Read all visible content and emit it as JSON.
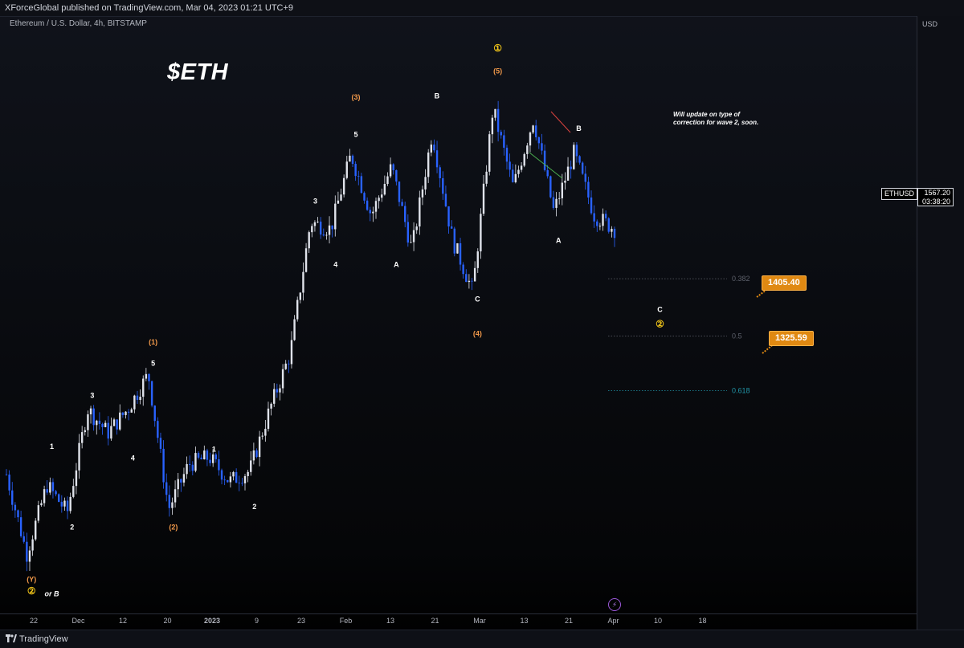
{
  "header": {
    "published": "XForceGlobal published on TradingView.com, Mar 04, 2023 01:21 UTC+9",
    "symbol_line": "Ethereum / U.S. Dollar, 4h, BITSTAMP"
  },
  "footer": {
    "brand": "TradingView"
  },
  "currency_label": "USD",
  "title": "$ETH",
  "note": "Will update on type of correction for wave 2, soon.",
  "ticker": "ETHUSD",
  "last_price": "1567.20",
  "countdown": "03:38:20",
  "colors": {
    "background": "#0b0d13",
    "candle_up": "#e0e3eb",
    "candle_down": "#2962ff",
    "wave_orange": "#f2994a",
    "fib_gray": "#5d606b",
    "fib_teal": "#2196a8",
    "callout": "#e08912",
    "trend_red": "#d9423e",
    "trend_green": "#4caf50"
  },
  "chart_data": {
    "type": "candlestick",
    "timeframe": "4h",
    "ylim": [
      1012,
      1840
    ],
    "y_ticks": [
      "1825.00",
      "1775.00",
      "1725.00",
      "1675.00",
      "1635.00",
      "1595.00",
      "1555.00",
      "1515.00",
      "1475.00",
      "1435.00",
      "1395.00",
      "1355.00",
      "1325.00",
      "1295.00",
      "1265.00",
      "1235.00",
      "1205.00",
      "1175.00",
      "1150.00",
      "1130.00",
      "1110.00",
      "1090.00",
      "1070.00",
      "1050.00",
      "1030.00",
      "1012.00"
    ],
    "x_ticks": [
      "22",
      "Dec",
      "12",
      "20",
      "2023",
      "9",
      "23",
      "Feb",
      "13",
      "21",
      "Mar",
      "13",
      "21",
      "Apr",
      "10",
      "18"
    ],
    "price_path": [
      [
        1205,
        1225
      ],
      [
        1090,
        1075
      ],
      [
        1190,
        1205
      ],
      [
        1150,
        1155
      ],
      [
        1300,
        1325
      ],
      [
        1265,
        1232
      ],
      [
        1300,
        1260
      ],
      [
        1350,
        1360
      ],
      [
        1155,
        1165
      ],
      [
        1220,
        1230
      ],
      [
        1230,
        1230
      ],
      [
        1195,
        1185
      ],
      [
        1210,
        1205
      ],
      [
        1300,
        1265
      ],
      [
        1380,
        1335
      ],
      [
        1570,
        1575
      ],
      [
        1560,
        1510
      ],
      [
        1668,
        1665
      ],
      [
        1580,
        1560
      ],
      [
        1650,
        1665
      ],
      [
        1530,
        1560
      ],
      [
        1700,
        1688
      ],
      [
        1545,
        1520
      ],
      [
        1470,
        1480
      ],
      [
        1735,
        1740
      ],
      [
        1620,
        1650
      ],
      [
        1720,
        1715
      ],
      [
        1585,
        1575
      ],
      [
        1670,
        1660
      ],
      [
        1580,
        1580
      ],
      [
        1560,
        1565
      ]
    ],
    "fibonacci": [
      {
        "ratio": "0.382",
        "price": 1488
      },
      {
        "ratio": "0.5",
        "price": 1405
      },
      {
        "ratio": "0.618",
        "price": 1326
      }
    ],
    "targets": [
      "1405.40",
      "1325.59"
    ],
    "wave_labels": [
      {
        "text": "(Y)",
        "color": "orange",
        "price": 1050,
        "idx": 1
      },
      {
        "text": "②",
        "color": "yellow",
        "price": 1032,
        "idx": 1
      },
      {
        "text": "or B",
        "color": "white",
        "price": 1029,
        "idx": 2
      },
      {
        "text": "1",
        "color": "white",
        "price": 1242,
        "idx": 2
      },
      {
        "text": "2",
        "color": "white",
        "price": 1125,
        "idx": 3
      },
      {
        "text": "3",
        "color": "white",
        "price": 1316,
        "idx": 4
      },
      {
        "text": "4",
        "color": "white",
        "price": 1225,
        "idx": 6
      },
      {
        "text": "(1)",
        "color": "orange",
        "price": 1393,
        "idx": 7
      },
      {
        "text": "5",
        "color": "white",
        "price": 1362,
        "idx": 7
      },
      {
        "text": "(2)",
        "color": "orange",
        "price": 1125,
        "idx": 8
      },
      {
        "text": "1",
        "color": "white",
        "price": 1238,
        "idx": 10
      },
      {
        "text": "2",
        "color": "white",
        "price": 1155,
        "idx": 12
      },
      {
        "text": "3",
        "color": "white",
        "price": 1597,
        "idx": 15
      },
      {
        "text": "4",
        "color": "white",
        "price": 1505,
        "idx": 16
      },
      {
        "text": "(3)",
        "color": "orange",
        "price": 1747,
        "idx": 17
      },
      {
        "text": "5",
        "color": "white",
        "price": 1693,
        "idx": 17
      },
      {
        "text": "A",
        "color": "white",
        "price": 1505,
        "idx": 19
      },
      {
        "text": "B",
        "color": "white",
        "price": 1749,
        "idx": 21
      },
      {
        "text": "C",
        "color": "white",
        "price": 1455,
        "idx": 23
      },
      {
        "text": "(4)",
        "color": "orange",
        "price": 1405,
        "idx": 23
      },
      {
        "text": "①",
        "color": "yellow",
        "price": 1817,
        "idx": 24
      },
      {
        "text": "(5)",
        "color": "orange",
        "price": 1785,
        "idx": 24
      },
      {
        "text": "A",
        "color": "white",
        "price": 1540,
        "idx": 27
      },
      {
        "text": "B",
        "color": "white",
        "price": 1702,
        "idx": 28
      },
      {
        "text": "C",
        "color": "white",
        "price": 1440,
        "idx": 32
      },
      {
        "text": "②",
        "color": "yellow",
        "price": 1418,
        "idx": 32
      }
    ]
  }
}
